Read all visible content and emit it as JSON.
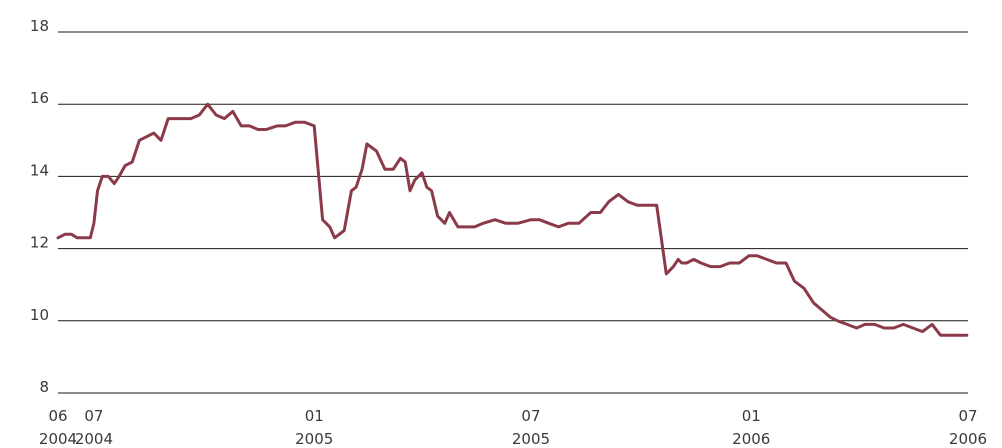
{
  "chart_data": {
    "type": "line",
    "title": "",
    "xlabel": "",
    "ylabel": "",
    "ylim": [
      8,
      18
    ],
    "yticks": [
      8,
      10,
      12,
      14,
      16,
      18
    ],
    "grid": true,
    "line_color": "#8b3a4a",
    "xticks": [
      {
        "x": "2004-06",
        "line1": "06",
        "line2": "2004"
      },
      {
        "x": "2004-07",
        "line1": "07",
        "line2": "2004"
      },
      {
        "x": "2005-01",
        "line1": "01",
        "line2": "2005"
      },
      {
        "x": "2005-07",
        "line1": "07",
        "line2": "2005"
      },
      {
        "x": "2006-01",
        "line1": "01",
        "line2": "2006"
      },
      {
        "x": "2006-07",
        "line1": "07",
        "line2": "2006"
      }
    ],
    "series": [
      {
        "x": [
          "2004-06-01",
          "2004-06-07",
          "2004-06-12",
          "2004-06-17",
          "2004-06-22",
          "2004-06-28",
          "2004-07-01",
          "2004-07-04",
          "2004-07-08",
          "2004-07-13",
          "2004-07-18",
          "2004-07-22",
          "2004-07-27",
          "2004-08-02",
          "2004-08-08",
          "2004-08-14",
          "2004-08-20",
          "2004-08-26",
          "2004-09-01",
          "2004-09-07",
          "2004-09-13",
          "2004-09-20",
          "2004-09-27",
          "2004-10-04",
          "2004-10-11",
          "2004-10-18",
          "2004-10-25",
          "2004-11-01",
          "2004-11-08",
          "2004-11-15",
          "2004-11-22",
          "2004-12-01",
          "2004-12-08",
          "2004-12-16",
          "2004-12-24",
          "2005-01-01",
          "2005-01-08",
          "2005-01-14",
          "2005-01-18",
          "2005-01-22",
          "2005-01-26",
          "2005-02-01",
          "2005-02-05",
          "2005-02-10",
          "2005-02-14",
          "2005-02-18",
          "2005-02-22",
          "2005-03-01",
          "2005-03-08",
          "2005-03-14",
          "2005-03-18",
          "2005-03-22",
          "2005-03-26",
          "2005-04-01",
          "2005-04-05",
          "2005-04-09",
          "2005-04-14",
          "2005-04-20",
          "2005-04-24",
          "2005-05-01",
          "2005-05-08",
          "2005-05-15",
          "2005-05-22",
          "2005-06-01",
          "2005-06-10",
          "2005-06-20",
          "2005-07-01",
          "2005-07-08",
          "2005-07-16",
          "2005-07-24",
          "2005-08-01",
          "2005-08-10",
          "2005-08-20",
          "2005-08-28",
          "2005-09-04",
          "2005-09-12",
          "2005-09-20",
          "2005-09-28",
          "2005-10-06",
          "2005-10-14",
          "2005-10-22",
          "2005-10-28",
          "2005-11-01",
          "2005-11-04",
          "2005-11-08",
          "2005-11-14",
          "2005-11-20",
          "2005-11-28",
          "2005-12-06",
          "2005-12-14",
          "2005-12-22",
          "2005-12-30",
          "2006-01-06",
          "2006-01-14",
          "2006-01-22",
          "2006-01-30",
          "2006-02-06",
          "2006-02-14",
          "2006-02-22",
          "2006-03-01",
          "2006-03-08",
          "2006-03-14",
          "2006-03-22",
          "2006-03-30",
          "2006-04-06",
          "2006-04-14",
          "2006-04-22",
          "2006-04-30",
          "2006-05-08",
          "2006-05-16",
          "2006-05-24",
          "2006-06-01",
          "2006-06-08",
          "2006-06-15",
          "2006-06-22",
          "2006-06-30"
        ],
        "values": [
          12.3,
          12.4,
          12.4,
          12.3,
          12.3,
          12.3,
          12.7,
          13.6,
          14.0,
          14.0,
          13.8,
          14.0,
          14.3,
          14.4,
          15.0,
          15.1,
          15.2,
          15.0,
          15.6,
          15.6,
          15.6,
          15.6,
          15.7,
          16.0,
          15.7,
          15.6,
          15.8,
          15.4,
          15.4,
          15.3,
          15.3,
          15.4,
          15.4,
          15.5,
          15.5,
          15.4,
          12.8,
          12.6,
          12.3,
          12.4,
          12.5,
          13.6,
          13.7,
          14.2,
          14.9,
          14.8,
          14.7,
          14.2,
          14.2,
          14.5,
          14.4,
          13.6,
          13.9,
          14.1,
          13.7,
          13.6,
          12.9,
          12.7,
          13.0,
          12.6,
          12.6,
          12.6,
          12.7,
          12.8,
          12.7,
          12.7,
          12.8,
          12.8,
          12.7,
          12.6,
          12.7,
          12.7,
          13.0,
          13.0,
          13.3,
          13.5,
          13.3,
          13.2,
          13.2,
          13.2,
          11.3,
          11.5,
          11.7,
          11.6,
          11.6,
          11.7,
          11.6,
          11.5,
          11.5,
          11.6,
          11.6,
          11.8,
          11.8,
          11.7,
          11.6,
          11.6,
          11.1,
          10.9,
          10.5,
          10.3,
          10.1,
          10.0,
          9.9,
          9.8,
          9.9,
          9.9,
          9.8,
          9.8,
          9.9,
          9.8,
          9.7,
          9.9,
          9.6,
          9.6,
          9.6,
          9.6
        ]
      }
    ]
  }
}
